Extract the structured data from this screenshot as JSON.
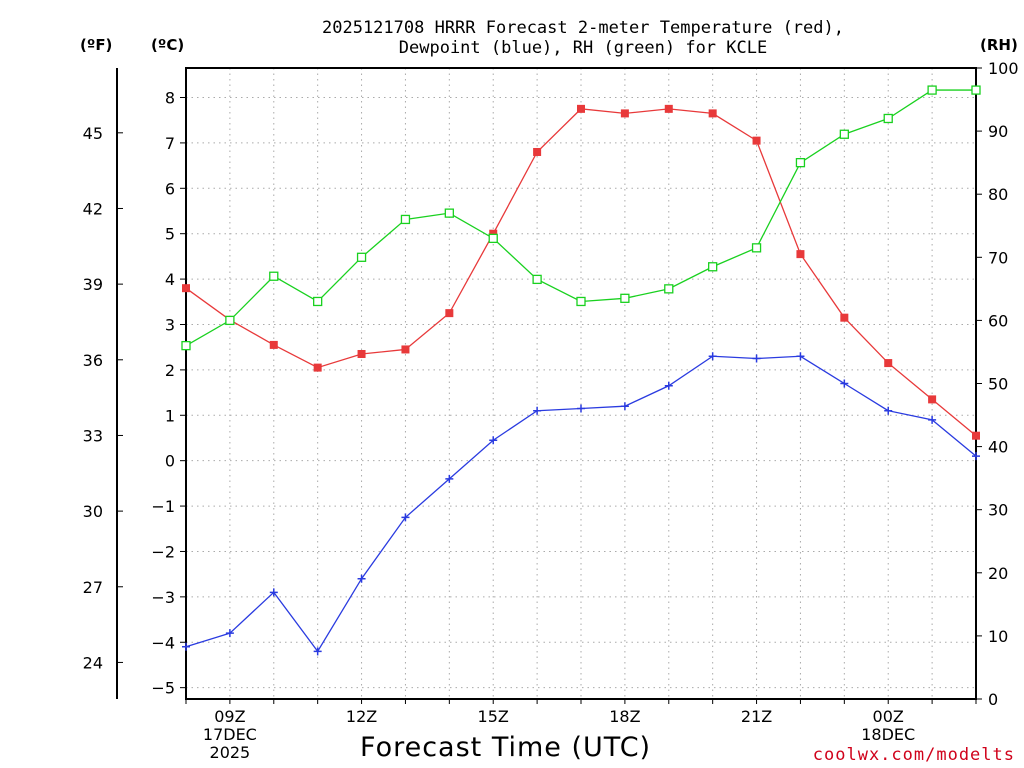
{
  "chart_data": {
    "type": "line",
    "title_line1": "2025121708 HRRR Forecast 2-meter Temperature (red),",
    "title_line2": "Dewpoint (blue), RH (green) for KCLE",
    "xlabel": "Forecast Time (UTC)",
    "credit": "coolwx.com/modelts",
    "units": {
      "fahrenheit": "(ºF)",
      "celsius": "(ºC)",
      "rh": "(RH)"
    },
    "x_hours": [
      8,
      9,
      10,
      11,
      12,
      13,
      14,
      15,
      16,
      17,
      18,
      19,
      20,
      21,
      22,
      23,
      24,
      25,
      26
    ],
    "x_ticks": [
      {
        "hour": 9,
        "lines": [
          "09Z",
          "17DEC",
          "2025"
        ]
      },
      {
        "hour": 12,
        "lines": [
          "12Z"
        ]
      },
      {
        "hour": 15,
        "lines": [
          "15Z"
        ]
      },
      {
        "hour": 18,
        "lines": [
          "18Z"
        ]
      },
      {
        "hour": 21,
        "lines": [
          "21Z"
        ]
      },
      {
        "hour": 24,
        "lines": [
          "00Z",
          "18DEC"
        ]
      }
    ],
    "y_celsius": {
      "range": [
        -5.25,
        8.65
      ],
      "ticks": [
        -5,
        -4,
        -3,
        -2,
        -1,
        0,
        1,
        2,
        3,
        4,
        5,
        6,
        7,
        8
      ]
    },
    "y_fahrenheit": {
      "ticks": [
        24,
        27,
        30,
        33,
        36,
        39,
        42,
        45
      ]
    },
    "y_rh": {
      "range": [
        0,
        100
      ],
      "ticks": [
        0,
        10,
        20,
        30,
        40,
        50,
        60,
        70,
        80,
        90,
        100
      ]
    },
    "series": [
      {
        "name": "Temperature",
        "unit": "C",
        "color": "#e8393a",
        "marker": "filled-square",
        "values": [
          3.8,
          3.1,
          2.55,
          2.05,
          2.35,
          2.45,
          3.25,
          5.0,
          6.8,
          7.75,
          7.65,
          7.75,
          7.65,
          7.05,
          4.55,
          3.15,
          2.15,
          1.35,
          0.55
        ]
      },
      {
        "name": "Dewpoint",
        "unit": "C",
        "color": "#2a3be0",
        "marker": "plus",
        "values": [
          -4.1,
          -3.8,
          -2.9,
          -4.2,
          -2.6,
          -1.25,
          -0.4,
          0.45,
          1.1,
          1.15,
          1.2,
          1.65,
          2.3,
          2.25,
          2.3,
          1.7,
          1.1,
          0.9,
          0.1
        ]
      },
      {
        "name": "RH",
        "unit": "%",
        "color": "#19d11f",
        "marker": "open-square",
        "values": [
          56,
          60,
          67,
          63,
          70,
          76,
          77,
          73,
          66.5,
          63,
          63.5,
          65,
          68.5,
          71.5,
          85,
          89.5,
          92,
          96.5,
          96.5
        ]
      }
    ]
  }
}
